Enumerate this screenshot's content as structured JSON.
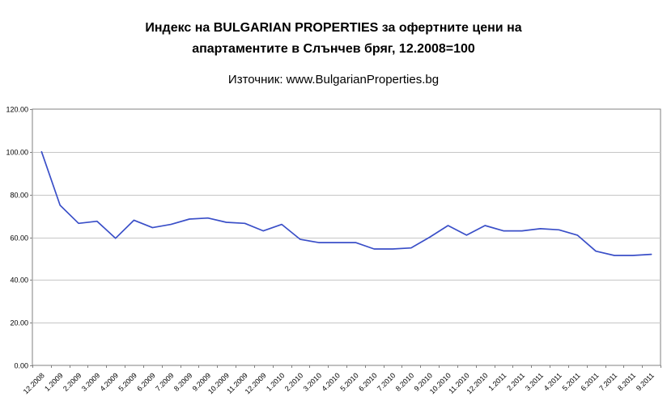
{
  "header": {
    "title_line1": "Индекс на BULGARIAN PROPERTIES за офертните цени на",
    "title_line2": "апартаментите в Слънчев бряг, 12.2008=100",
    "subtitle": "Източник: www.BulgarianProperties.bg"
  },
  "chart_data": {
    "type": "line",
    "title": "Индекс на BULGARIAN PROPERTIES за офертните цени на апартаментите в Слънчев бряг, 12.2008=100",
    "source": "Източник: www.BulgarianProperties.bg",
    "xlabel": "",
    "ylabel": "",
    "categories": [
      "12.2008",
      "1.2009",
      "2.2009",
      "3.2009",
      "4.2009",
      "5.2009",
      "6.2009",
      "7.2009",
      "8.2009",
      "9.2009",
      "10.2009",
      "11.2009",
      "12.2009",
      "1.2010",
      "2.2010",
      "3.2010",
      "4.2010",
      "5.2010",
      "6.2010",
      "7.2010",
      "8.2010",
      "9.2010",
      "10.2010",
      "11.2010",
      "12.2010",
      "1.2011",
      "2.2011",
      "3.2011",
      "4.2011",
      "5.2011",
      "6.2011",
      "7.2011",
      "8.2011",
      "9.2011"
    ],
    "values": [
      100,
      75,
      66.5,
      67.5,
      59.5,
      68,
      64.5,
      66,
      68.5,
      69,
      67,
      66.5,
      63,
      66,
      59,
      57.5,
      57.5,
      57.5,
      54.5,
      54.5,
      55,
      60,
      65.5,
      61,
      65.5,
      63,
      63,
      64,
      63.5,
      61,
      53.5,
      51.5,
      51.5,
      52
    ],
    "ylim": [
      0,
      120
    ],
    "y_tick_step": 20,
    "y_tick_labels": [
      "0.00",
      "20.00",
      "40.00",
      "60.00",
      "80.00",
      "100.00",
      "120.00"
    ],
    "grid": true,
    "legend": false,
    "line_color": "#3a4fc8",
    "grid_color": "#c6c6c6",
    "border_color": "#808080",
    "axis_text_color": "#000000"
  }
}
